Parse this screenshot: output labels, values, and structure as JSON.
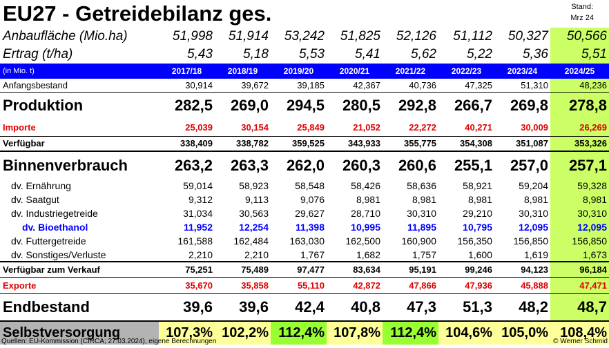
{
  "title": "EU27 - Getreidebilanz ges.",
  "stand": {
    "line1": "Stand:",
    "line2": "Mrz 24"
  },
  "years": [
    "2017/18",
    "2018/19",
    "2019/20",
    "2020/21",
    "2021/22",
    "2022/23",
    "2023/24",
    "2024/25"
  ],
  "rows": {
    "anbau": {
      "label": "Anbaufläche (Mio.ha)",
      "values": [
        "51,998",
        "51,914",
        "53,242",
        "51,825",
        "52,126",
        "51,112",
        "50,327",
        "50,566"
      ]
    },
    "ertrag": {
      "label": "Ertrag (t/ha)",
      "values": [
        "5,43",
        "5,18",
        "5,53",
        "5,41",
        "5,62",
        "5,22",
        "5,36",
        "5,51"
      ]
    },
    "unit": {
      "label": "(in Mio. t)"
    },
    "anfang": {
      "label": "Anfangsbestand",
      "values": [
        "30,914",
        "39,672",
        "39,185",
        "42,367",
        "40,736",
        "47,325",
        "51,310",
        "48,236"
      ]
    },
    "produktion": {
      "label": "Produktion",
      "values": [
        "282,5",
        "269,0",
        "294,5",
        "280,5",
        "292,8",
        "266,7",
        "269,8",
        "278,8"
      ]
    },
    "importe": {
      "label": "Importe",
      "values": [
        "25,039",
        "30,154",
        "25,849",
        "21,052",
        "22,272",
        "40,271",
        "30,009",
        "26,269"
      ]
    },
    "verfuegbar": {
      "label": "Verfügbar",
      "values": [
        "338,409",
        "338,782",
        "359,525",
        "343,933",
        "355,775",
        "354,308",
        "351,087",
        "353,326"
      ]
    },
    "binnen": {
      "label": "Binnenverbrauch",
      "values": [
        "263,2",
        "263,3",
        "262,0",
        "260,3",
        "260,6",
        "255,1",
        "257,0",
        "257,1"
      ]
    },
    "ernaehrung": {
      "label": "dv. Ernährung",
      "values": [
        "59,014",
        "58,923",
        "58,548",
        "58,426",
        "58,636",
        "58,921",
        "59,204",
        "59,328"
      ]
    },
    "saatgut": {
      "label": "dv. Saatgut",
      "values": [
        "9,312",
        "9,113",
        "9,076",
        "8,981",
        "8,981",
        "8,981",
        "8,981",
        "8,981"
      ]
    },
    "industrie": {
      "label": "dv. Industriegetreide",
      "values": [
        "31,034",
        "30,563",
        "29,627",
        "28,710",
        "30,310",
        "29,210",
        "30,310",
        "30,310"
      ]
    },
    "bioethanol": {
      "label": "dv. Bioethanol",
      "values": [
        "11,952",
        "12,254",
        "11,398",
        "10,995",
        "11,895",
        "10,795",
        "12,095",
        "12,095"
      ]
    },
    "futter": {
      "label": "dv. Futtergetreide",
      "values": [
        "161,588",
        "162,484",
        "163,030",
        "162,500",
        "160,900",
        "156,350",
        "156,850",
        "156,850"
      ]
    },
    "sonstiges": {
      "label": "dv. Sonstiges/Verluste",
      "values": [
        "2,210",
        "2,210",
        "1,767",
        "1,682",
        "1,757",
        "1,600",
        "1,619",
        "1,673"
      ]
    },
    "verkauf": {
      "label": "Verfügbar zum Verkauf",
      "values": [
        "75,251",
        "75,489",
        "97,477",
        "83,634",
        "95,191",
        "99,246",
        "94,123",
        "96,184"
      ]
    },
    "exporte": {
      "label": "Exporte",
      "values": [
        "35,670",
        "35,858",
        "55,110",
        "42,872",
        "47,866",
        "47,936",
        "45,888",
        "47,471"
      ]
    },
    "endbestand": {
      "label": "Endbestand",
      "values": [
        "39,6",
        "39,6",
        "42,4",
        "40,8",
        "47,3",
        "51,3",
        "48,2",
        "48,7"
      ]
    },
    "selbst": {
      "label": "Selbstversorgung",
      "values": [
        "107,3%",
        "102,2%",
        "112,4%",
        "107,8%",
        "112,4%",
        "104,6%",
        "105,0%",
        "108,4%"
      ]
    }
  },
  "colors": {
    "highlight_column": "#ccff66",
    "self_strong": "#99ff33",
    "self_light": "#ffff99",
    "header_blue": "#0000ff",
    "import_export_red": "#e00000",
    "bioethanol_blue": "#0000ff"
  },
  "self_shading": [
    "light",
    "light",
    "strong",
    "light",
    "strong",
    "light",
    "light",
    "light"
  ],
  "footer": {
    "source": "Quellen: EU-Kommission (CIRCA; 27.03.2024), eigene Berechnungen",
    "author": "© Werner Schmid"
  }
}
